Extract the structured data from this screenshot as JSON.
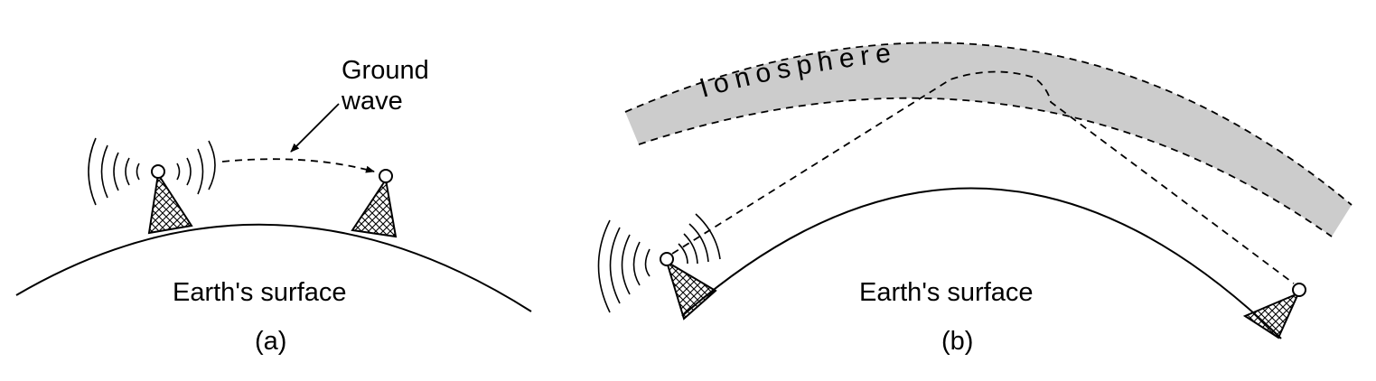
{
  "panel_a": {
    "ground_wave_line1": "Ground",
    "ground_wave_line2": "wave",
    "surface_label": "Earth's surface",
    "caption": "(a)"
  },
  "panel_b": {
    "ionosphere_label": "Ionosphere",
    "surface_label": "Earth's surface",
    "caption": "(b)"
  },
  "colors": {
    "ionosphere_fill": "#cccccc",
    "stroke": "#000000"
  },
  "icons": [
    "radio-tower-icon",
    "radio-wave-arcs-icon"
  ]
}
